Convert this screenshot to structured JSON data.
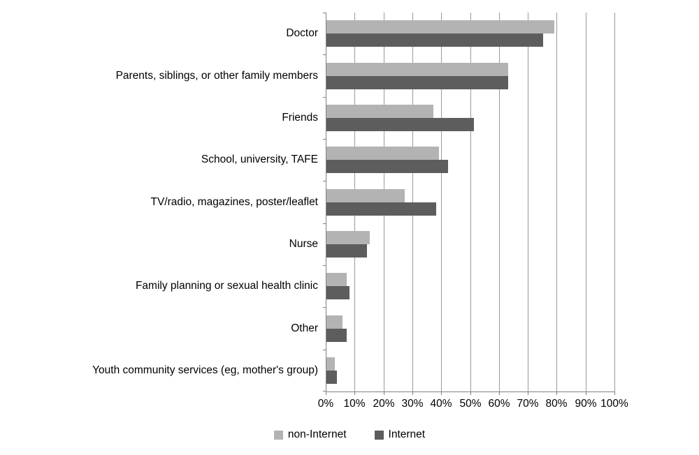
{
  "chart_data": {
    "type": "bar",
    "orientation": "horizontal",
    "title": "",
    "xlabel": "",
    "ylabel": "",
    "xlim": [
      0,
      100
    ],
    "grid": "vertical",
    "legend_position": "bottom",
    "categories": [
      "Doctor",
      "Parents, siblings, or other family members",
      "Friends",
      "School, university, TAFE",
      "TV/radio, magazines, poster/leaflet",
      "Nurse",
      "Family planning or sexual health clinic",
      "Other",
      "Youth community services (eg, mother's group)"
    ],
    "series": [
      {
        "name": "non-Internet",
        "color": "#b3b3b3",
        "values": [
          79,
          63,
          37,
          39,
          27,
          15,
          7,
          5.5,
          3
        ]
      },
      {
        "name": "Internet",
        "color": "#5d5d5d",
        "values": [
          75,
          63,
          51,
          42,
          38,
          14,
          8,
          7,
          3.5
        ]
      }
    ],
    "x_ticks": [
      "0%",
      "10%",
      "20%",
      "30%",
      "40%",
      "50%",
      "60%",
      "70%",
      "80%",
      "90%",
      "100%"
    ],
    "axis_color": "#808080",
    "gridline_color": "#9a9a9a",
    "text_color": "#000000"
  }
}
